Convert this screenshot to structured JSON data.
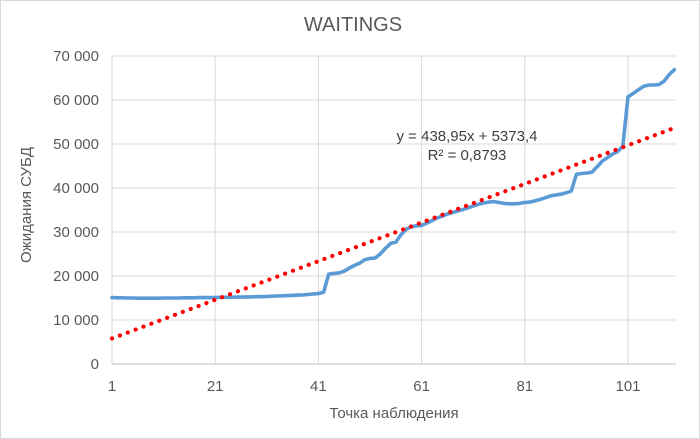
{
  "chart": {
    "title": "WAITINGS"
  },
  "colors": {
    "series_blue": "#5B9BD5",
    "trendline_red": "#FF0000",
    "gridline": "#D9D9D9",
    "axis_line": "#BFBFBF",
    "tick_text": "#595959",
    "annotation_text": "#404040",
    "background": "#FFFFFF"
  },
  "chart_data": {
    "type": "line",
    "title": "WAITINGS",
    "xlabel": "Точка наблюдения",
    "ylabel": "Ожидания СУБД",
    "grid": true,
    "legend": "none",
    "xlim": [
      1,
      110
    ],
    "ylim": [
      0,
      70000
    ],
    "xticks": [
      1,
      21,
      41,
      61,
      81,
      101
    ],
    "yticks": [
      0,
      10000,
      20000,
      30000,
      40000,
      50000,
      60000,
      70000
    ],
    "ytick_labels": [
      "0",
      "10 000",
      "20 000",
      "30 000",
      "40 000",
      "50 000",
      "60 000",
      "70 000"
    ],
    "x_start": 1,
    "series": [
      {
        "name": "Ожидания СУБД",
        "color": "#5B9BD5",
        "values": [
          15100,
          15050,
          15050,
          15000,
          15000,
          14950,
          14950,
          14950,
          14950,
          14950,
          15000,
          15000,
          15000,
          15000,
          15050,
          15050,
          15050,
          15100,
          15100,
          15100,
          15100,
          15150,
          15150,
          15150,
          15200,
          15200,
          15250,
          15250,
          15300,
          15300,
          15350,
          15400,
          15450,
          15500,
          15550,
          15600,
          15650,
          15700,
          15800,
          15900,
          16000,
          16300,
          20400,
          20600,
          20700,
          21100,
          21800,
          22400,
          22900,
          23700,
          24000,
          24100,
          25000,
          26300,
          27400,
          27700,
          29400,
          30600,
          31200,
          31400,
          31500,
          32000,
          32600,
          33200,
          33600,
          34100,
          34400,
          34800,
          35100,
          35500,
          35900,
          36300,
          36600,
          36800,
          36900,
          36700,
          36500,
          36400,
          36400,
          36500,
          36700,
          36800,
          37100,
          37400,
          37800,
          38200,
          38400,
          38600,
          38900,
          39300,
          43100,
          43300,
          43400,
          43600,
          44800,
          46100,
          46900,
          47700,
          48300,
          49500,
          60700,
          61500,
          62300,
          63100,
          63400,
          63400,
          63500,
          64300,
          65800,
          66900
        ]
      }
    ],
    "trendline": {
      "type": "linear",
      "style": "dotted",
      "color": "#FF0000",
      "slope": 438.95,
      "intercept": 5373.4,
      "equation_label": "y = 438,95x + 5373,4",
      "r2_label": "R² = 0,8793"
    }
  }
}
